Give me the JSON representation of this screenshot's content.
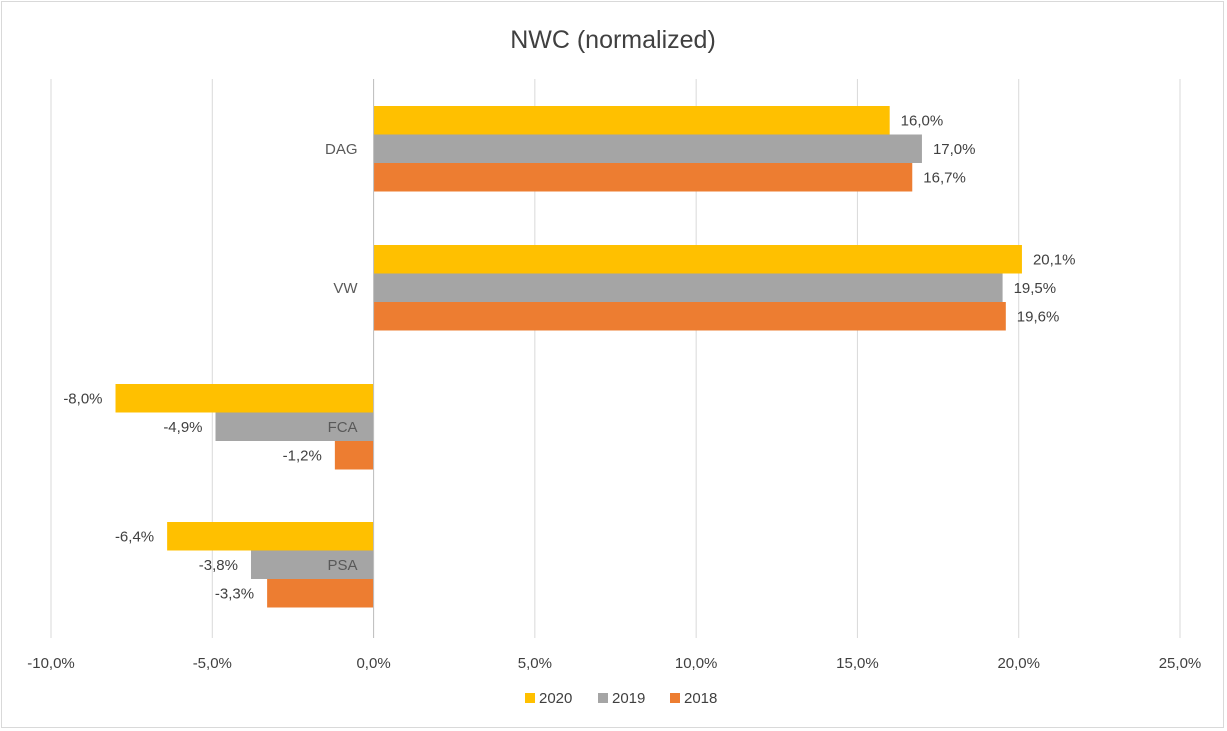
{
  "chart_data": {
    "type": "bar",
    "orientation": "horizontal",
    "title": "NWC (normalized)",
    "xlabel": "",
    "ylabel": "",
    "categories": [
      "DAG",
      "VW",
      "FCA",
      "PSA"
    ],
    "series": [
      {
        "name": "2020",
        "color": "#FFC000",
        "values": [
          16.0,
          20.1,
          -8.0,
          -6.4
        ],
        "labels": [
          "16,0%",
          "20,1%",
          "-8,0%",
          "-6,4%"
        ]
      },
      {
        "name": "2019",
        "color": "#A5A5A5",
        "values": [
          17.0,
          19.5,
          -4.9,
          -3.8
        ],
        "labels": [
          "17,0%",
          "19,5%",
          "-4,9%",
          "-3,8%"
        ]
      },
      {
        "name": "2018",
        "color": "#ED7D31",
        "values": [
          16.7,
          19.6,
          -1.2,
          -3.3
        ],
        "labels": [
          "16,7%",
          "19,6%",
          "-1,2%",
          "-3,3%"
        ]
      }
    ],
    "xlim": [
      -10,
      25
    ],
    "xticks": [
      -10,
      -5,
      0,
      5,
      10,
      15,
      20,
      25
    ],
    "xtick_labels": [
      "-10,0%",
      "-5,0%",
      "0,0%",
      "5,0%",
      "10,0%",
      "15,0%",
      "20,0%",
      "25,0%"
    ],
    "grid": true,
    "legend_position": "bottom"
  }
}
